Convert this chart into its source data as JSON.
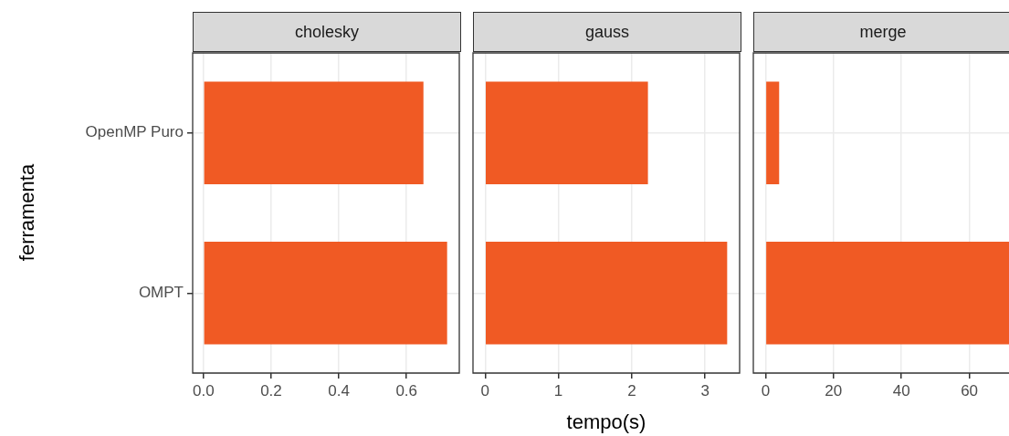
{
  "chart_data": [
    {
      "type": "bar",
      "orientation": "horizontal",
      "title": "cholesky",
      "ylabel": "ferramenta",
      "categories": [
        "OpenMP Puro",
        "OMPT"
      ],
      "values": [
        0.65,
        0.72
      ],
      "color": "#f05a24",
      "xlim": [
        -0.032,
        0.756
      ],
      "xticks": [
        {
          "value": 0,
          "label": "0.0"
        },
        {
          "value": 0.2,
          "label": "0.2"
        },
        {
          "value": 0.4,
          "label": "0.4"
        },
        {
          "value": 0.6,
          "label": "0.6"
        }
      ],
      "grid": true,
      "legend": false
    },
    {
      "type": "bar",
      "orientation": "horizontal",
      "title": "gauss",
      "xlabel": "tempo(s)",
      "categories": [
        null,
        null
      ],
      "values": [
        2.22,
        3.3
      ],
      "color": "#f05a24",
      "xlim": [
        -0.165,
        3.47
      ],
      "xticks": [
        0,
        1,
        2,
        3
      ],
      "grid": true,
      "legend": false,
      "tick_labels": "x"
    },
    {
      "type": "bar",
      "orientation": "horizontal",
      "title": "merge",
      "categories": [
        null,
        null
      ],
      "values": [
        4,
        72
      ],
      "color": "#f05a24",
      "xlim": [
        -3.6,
        72.2
      ],
      "xticks": [
        0,
        20,
        40,
        60
      ],
      "grid": true,
      "legend": false,
      "tick_labels": "x"
    }
  ]
}
